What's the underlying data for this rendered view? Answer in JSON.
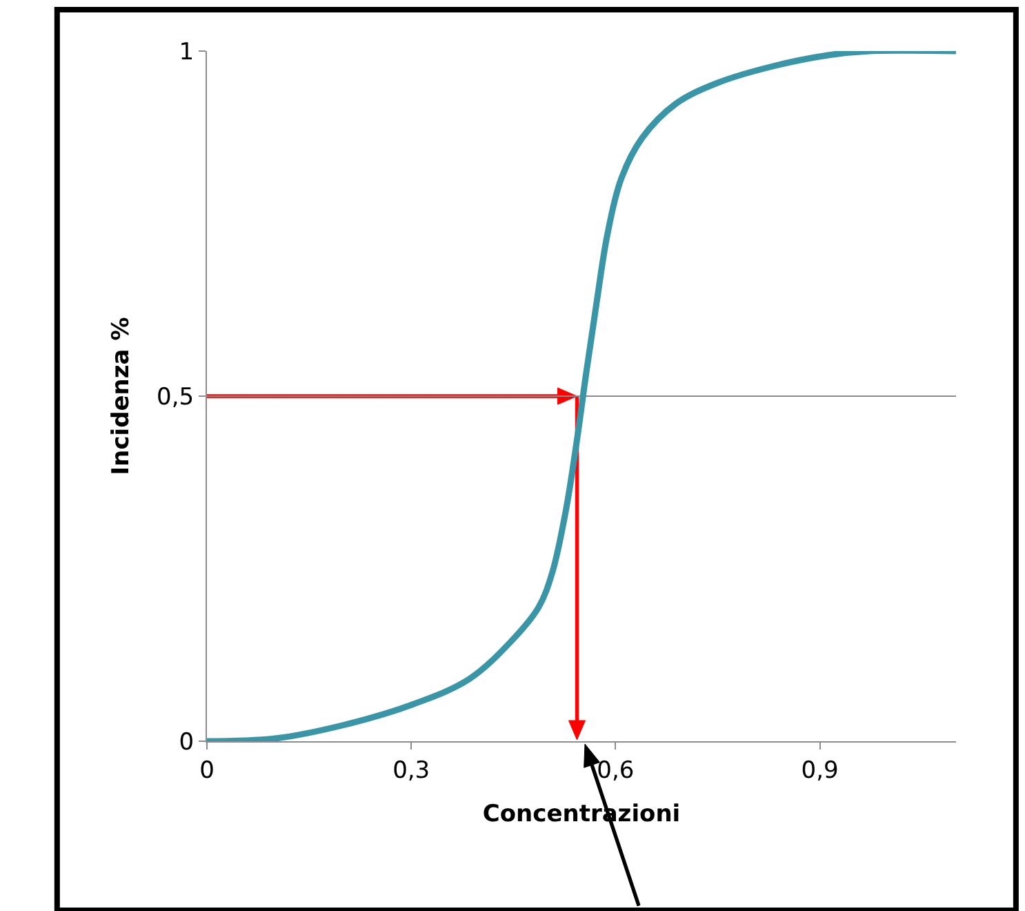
{
  "chart_data": {
    "type": "line",
    "xlabel": "Concentrazioni",
    "ylabel": "Incidenza %",
    "xlim": [
      0,
      1.1
    ],
    "ylim": [
      0,
      1
    ],
    "xticks": [
      0,
      {
        "value": 0.3,
        "label": "0,3"
      },
      {
        "value": 0.6,
        "label": "0,6"
      },
      {
        "value": 0.9,
        "label": "0,9"
      }
    ],
    "yticks": [
      0,
      {
        "value": 0.5,
        "label": "0,5"
      },
      1
    ],
    "grid": "y",
    "marker": "none",
    "line_style": "solid",
    "series": [
      {
        "color": "#3a95a6",
        "x": [
          0,
          0.1,
          0.203,
          0.304,
          0.385,
          0.446,
          0.487,
          0.507,
          0.527,
          0.543,
          0.557,
          0.572,
          0.588,
          0.608,
          0.639,
          0.689,
          0.75,
          0.831,
          0.912,
          0.973,
          1.1
        ],
        "values": [
          0,
          0.004,
          0.024,
          0.054,
          0.09,
          0.144,
          0.194,
          0.244,
          0.334,
          0.434,
          0.534,
          0.634,
          0.734,
          0.814,
          0.874,
          0.924,
          0.954,
          0.978,
          0.994,
          1,
          1
        ]
      }
    ]
  }
}
